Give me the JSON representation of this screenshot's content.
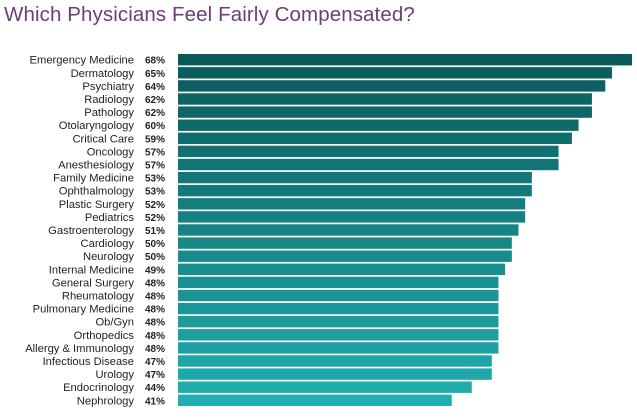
{
  "chart_data": {
    "type": "bar",
    "orientation": "horizontal",
    "title": "Which Physicians Feel Fairly Compensated?",
    "value_suffix": "%",
    "categories": [
      "Emergency Medicine",
      "Dermatology",
      "Psychiatry",
      "Radiology",
      "Pathology",
      "Otolaryngology",
      "Critical Care",
      "Oncology",
      "Anesthesiology",
      "Family Medicine",
      "Ophthalmology",
      "Plastic Surgery",
      "Pediatrics",
      "Gastroenterology",
      "Cardiology",
      "Neurology",
      "Internal Medicine",
      "General Surgery",
      "Rheumatology",
      "Pulmonary Medicine",
      "Ob/Gyn",
      "Orthopedics",
      "Allergy & Immunology",
      "Infectious Disease",
      "Urology",
      "Endocrinology",
      "Nephrology"
    ],
    "values": [
      68,
      65,
      64,
      62,
      62,
      60,
      59,
      57,
      57,
      53,
      53,
      52,
      52,
      51,
      50,
      50,
      49,
      48,
      48,
      48,
      48,
      48,
      48,
      47,
      47,
      44,
      41
    ],
    "value_labels": [
      "68%",
      "65%",
      "64%",
      "62%",
      "62%",
      "60%",
      "59%",
      "57%",
      "57%",
      "53%",
      "53%",
      "52%",
      "52%",
      "51%",
      "50%",
      "50%",
      "49%",
      "48%",
      "48%",
      "48%",
      "48%",
      "48%",
      "48%",
      "47%",
      "47%",
      "44%",
      "41%"
    ],
    "xlim": [
      0,
      68
    ],
    "grid": false,
    "legend": "none",
    "colors": {
      "title": "#6a3f75",
      "bar_top": "#0b5a5a",
      "bar_bottom": "#21aeb0"
    }
  }
}
